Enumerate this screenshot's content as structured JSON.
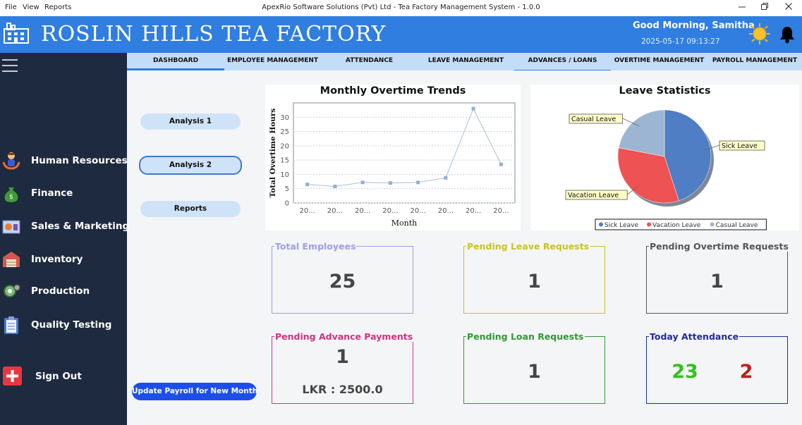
{
  "window": {
    "menu": [
      "File",
      "View",
      "Reports"
    ],
    "title": "ApexRio  Software  Solutions (Pvt) Ltd - Tea Factory Management System - 1.0.0",
    "controls": {
      "minimize_icon": "minimize-icon",
      "restore_icon": "restore-icon",
      "close_icon": "close-icon"
    }
  },
  "header": {
    "factory_name": "ROSLIN HILLS TEA FACTORY",
    "greeting": "Good Morning,  Samitha",
    "datetime": "2025-05-17 09:13:27",
    "bg_color": "#2f7ee0"
  },
  "sidebar": {
    "items": [
      {
        "label": "Human Resources",
        "icon": "human-resources-icon"
      },
      {
        "label": "Finance",
        "icon": "money-bag-icon"
      },
      {
        "label": "Sales & Marketing",
        "icon": "sales-icon"
      },
      {
        "label": "Inventory",
        "icon": "warehouse-icon"
      },
      {
        "label": "Production",
        "icon": "production-icon"
      },
      {
        "label": "Quality Testing",
        "icon": "clipboard-icon"
      }
    ],
    "sign_out": "Sign Out"
  },
  "tabs": [
    {
      "label": "DASHBOARD"
    },
    {
      "label": "EMPLOYEE MANAGEMENT"
    },
    {
      "label": "ATTENDANCE"
    },
    {
      "label": "LEAVE MANAGEMENT"
    },
    {
      "label": "ADVANCES / LOANS"
    },
    {
      "label": "OVERTIME MANAGEMENT"
    },
    {
      "label": "PAYROLL MANAGEMENT"
    }
  ],
  "analysis_buttons": [
    "Analysis 1",
    "Analysis 2",
    "Reports"
  ],
  "payroll_button": "Update Payroll for New Month",
  "chart_data": [
    {
      "type": "line",
      "title": "Monthly Overtime Trends",
      "xlabel": "Month",
      "ylabel": "Total Overtime Hours",
      "x": [
        "20...",
        "20...",
        "20...",
        "20...",
        "20...",
        "20...",
        "20...",
        "20..."
      ],
      "values": [
        6.5,
        5.8,
        7.2,
        7.0,
        7.2,
        8.8,
        33.0,
        13.5
      ],
      "yticks": [
        0,
        5,
        10,
        15,
        20,
        25,
        30
      ],
      "ylim": [
        0,
        35
      ],
      "grid": true,
      "color": "#a9c0d8"
    },
    {
      "type": "pie",
      "title": "Leave Statistics",
      "slices": [
        {
          "name": "Sick Leave",
          "value": 45,
          "color": "#4f7ec4"
        },
        {
          "name": "Vacation Leave",
          "value": 33,
          "color": "#ee5252"
        },
        {
          "name": "Casual Leave",
          "value": 22,
          "color": "#9cb5d3"
        }
      ],
      "legend_position": "bottom"
    }
  ],
  "stats": {
    "total_employees": {
      "label": "Total Employees",
      "value": "25",
      "color": "#9d9ee3"
    },
    "pending_leave": {
      "label": "Pending Leave Requests",
      "value": "1",
      "color": "#c9c31f"
    },
    "pending_overtime": {
      "label": "Pending Overtime Requests",
      "value": "1",
      "color": "#555555"
    },
    "pending_advance": {
      "label": "Pending Advance Payments",
      "value": "1",
      "amount": "LKR : 2500.0",
      "color": "#d6317f"
    },
    "pending_loan": {
      "label": "Pending Loan Requests",
      "value": "1",
      "color": "#2e9a33"
    },
    "today_attendance": {
      "label": "Today Attendance",
      "present": "23",
      "absent": "2",
      "color": "#1f2b9c",
      "present_color": "#33c11f",
      "absent_color": "#bf1f1f"
    }
  }
}
